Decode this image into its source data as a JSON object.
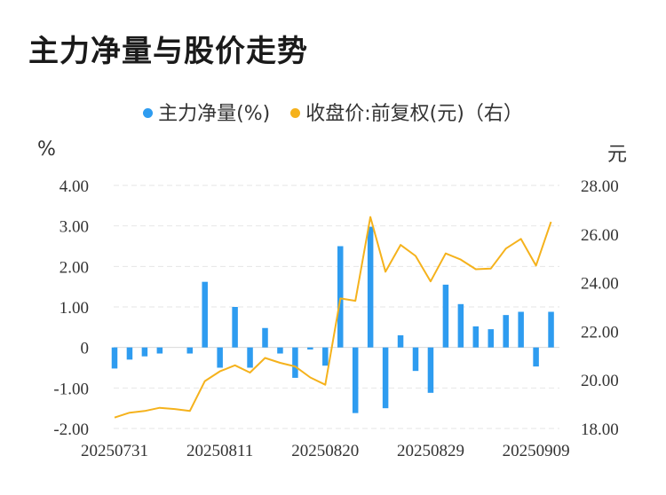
{
  "title": "主力净量与股价走势",
  "legend": {
    "series1": "主力净量(%)",
    "series2": "收盘价:前复权(元)（右）"
  },
  "units": {
    "left": "%",
    "right": "元"
  },
  "colors": {
    "bar": "#2e9cf0",
    "line": "#f5b21c",
    "grid": "#e6e6e6",
    "text": "#333333"
  },
  "chart_data": {
    "type": "bar+line",
    "x_tick_labels": [
      "20250731",
      "20250811",
      "20250820",
      "20250829",
      "20250909"
    ],
    "x_tick_indices": [
      0,
      7,
      14,
      21,
      28
    ],
    "left_axis": {
      "min": -2,
      "max": 4,
      "ticks": [
        "-2.00",
        "-1.00",
        "0",
        "1.00",
        "2.00",
        "3.00",
        "4.00"
      ],
      "tick_values": [
        -2,
        -1,
        0,
        1,
        2,
        3,
        4
      ]
    },
    "right_axis": {
      "min": 18,
      "max": 28,
      "ticks": [
        "18.00",
        "20.00",
        "22.00",
        "24.00",
        "26.00",
        "28.00"
      ],
      "tick_values": [
        18,
        20,
        22,
        24,
        26,
        28
      ]
    },
    "series": [
      {
        "name": "主力净量(%)",
        "kind": "bar",
        "axis": "left",
        "values": [
          -0.52,
          -0.3,
          -0.22,
          -0.15,
          0,
          -0.15,
          1.62,
          -0.5,
          1.0,
          -0.5,
          0.48,
          -0.15,
          -0.75,
          -0.05,
          -0.45,
          2.5,
          -1.62,
          2.98,
          -1.5,
          0.3,
          -0.58,
          -1.12,
          1.55,
          1.07,
          0.52,
          0.45,
          0.8,
          0.88,
          -0.47,
          0.88
        ]
      },
      {
        "name": "收盘价:前复权(元)（右）",
        "kind": "line",
        "axis": "right",
        "values": [
          18.45,
          18.65,
          18.72,
          18.85,
          18.8,
          18.72,
          19.95,
          20.35,
          20.6,
          20.3,
          20.9,
          20.7,
          20.55,
          20.1,
          19.8,
          23.35,
          23.25,
          26.7,
          24.45,
          25.55,
          25.1,
          24.05,
          25.2,
          24.95,
          24.55,
          24.58,
          25.4,
          25.8,
          24.7,
          26.5
        ]
      }
    ],
    "grid": true,
    "legend_position": "top-center"
  }
}
